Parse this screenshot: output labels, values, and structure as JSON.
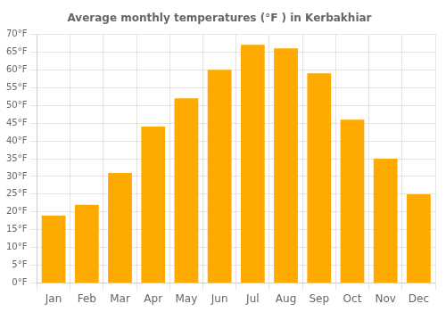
{
  "chart_data": {
    "type": "bar",
    "title": "Average monthly temperatures (°F ) in Kerbakhiar",
    "categories": [
      "Jan",
      "Feb",
      "Mar",
      "Apr",
      "May",
      "Jun",
      "Jul",
      "Aug",
      "Sep",
      "Oct",
      "Nov",
      "Dec"
    ],
    "values": [
      19,
      22,
      31,
      44,
      52,
      60,
      67,
      66,
      59,
      46,
      35,
      25
    ],
    "color": "#FFAA00",
    "ylim": [
      0,
      70
    ],
    "yticks": [
      {
        "value": 0,
        "label": "0°F"
      },
      {
        "value": 5,
        "label": "5°F"
      },
      {
        "value": 10,
        "label": "10°F"
      },
      {
        "value": 15,
        "label": "15°F"
      },
      {
        "value": 20,
        "label": "20°F"
      },
      {
        "value": 25,
        "label": "25°F"
      },
      {
        "value": 30,
        "label": "30°F"
      },
      {
        "value": 35,
        "label": "35°F"
      },
      {
        "value": 40,
        "label": "40°F"
      },
      {
        "value": 45,
        "label": "45°F"
      },
      {
        "value": 50,
        "label": "50°F"
      },
      {
        "value": 55,
        "label": "55°F"
      },
      {
        "value": 60,
        "label": "60°F"
      },
      {
        "value": 65,
        "label": "65°F"
      },
      {
        "value": 70,
        "label": "70°F"
      }
    ],
    "grid": true
  }
}
